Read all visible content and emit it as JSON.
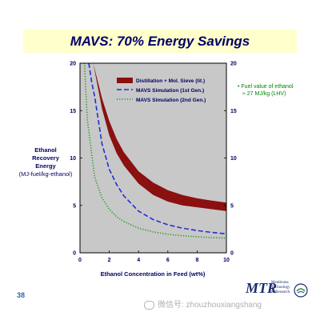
{
  "slide": {
    "title": "MAVS: 70% Energy Savings",
    "page_number": "38",
    "side_note": [
      "• Fuel value of ethanol",
      "≈ 27 MJ/kg (LHV)"
    ],
    "watermark": "微信号: zhouzhouxiangshang",
    "logo": {
      "main": "MTR",
      "sub": [
        "Membrane",
        "Technology",
        "& Research"
      ]
    }
  },
  "colors": {
    "plot_bg": "#c8c8c8",
    "band": "#8b1010",
    "gen1": "#1f2fd6",
    "gen2": "#1f9a1f",
    "axis_text": "#000066"
  },
  "chart_data": {
    "type": "line",
    "title": "MAVS: 70% Energy Savings",
    "xlabel": "Ethanol Concentration in Feed (wt%)",
    "ylabel": [
      "Ethanol",
      "Recovery",
      "Energy"
    ],
    "ylabel_unit": "(MJ-fuel/kg-ethanol)",
    "xlim": [
      0,
      10
    ],
    "ylim": [
      0,
      20
    ],
    "x_ticks": [
      0,
      2,
      4,
      6,
      8,
      10
    ],
    "y_ticks": [
      0,
      5,
      10,
      15,
      20
    ],
    "legend_position": "top-right",
    "grid": false,
    "series": [
      {
        "name": "Distillation + Mol. Sieve (lit.)",
        "style": "band",
        "x": [
          0.9,
          1.5,
          2,
          2.5,
          3,
          4,
          5,
          6,
          7,
          8,
          9,
          10
        ],
        "upper": [
          20,
          16.3,
          13.9,
          12,
          10.6,
          8.6,
          7.4,
          6.6,
          6.1,
          5.75,
          5.5,
          5.3
        ],
        "lower": [
          20,
          15.2,
          12.4,
          10.5,
          9.2,
          7.3,
          6.1,
          5.4,
          5.0,
          4.8,
          4.6,
          4.4
        ]
      },
      {
        "name": "MAVS Simulation (1st Gen.)",
        "style": "dash",
        "x": [
          0.6,
          0.8,
          1,
          1.5,
          2,
          2.5,
          3,
          4,
          5,
          6,
          7,
          8,
          9,
          10
        ],
        "y": [
          20,
          18,
          16.5,
          11.5,
          8.8,
          7.2,
          6.0,
          4.4,
          3.5,
          2.95,
          2.6,
          2.35,
          2.15,
          2.0
        ]
      },
      {
        "name": "MAVS Simulation (2nd Gen.)",
        "style": "dot",
        "x": [
          0.3,
          0.5,
          1,
          1.5,
          2,
          2.5,
          3,
          4,
          5,
          6,
          7,
          8,
          9,
          10
        ],
        "y": [
          20,
          14,
          8.0,
          5.8,
          4.6,
          3.8,
          3.3,
          2.6,
          2.2,
          1.95,
          1.8,
          1.7,
          1.6,
          1.55
        ]
      }
    ]
  }
}
